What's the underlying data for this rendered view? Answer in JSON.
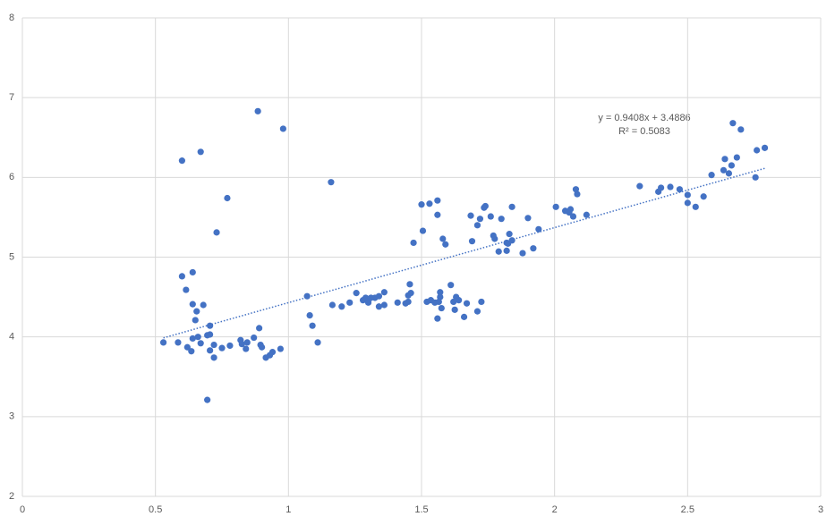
{
  "chart_data": {
    "type": "scatter",
    "color": "#4472c4",
    "grid": true,
    "xlim": [
      0,
      3
    ],
    "ylim": [
      2,
      8
    ],
    "xticks": [
      0,
      0.5,
      1,
      1.5,
      2,
      2.5,
      3
    ],
    "yticks": [
      2,
      3,
      4,
      5,
      6,
      7,
      8
    ],
    "trendline": {
      "equation": "y = 0.9408x + 3.4886",
      "r_squared": "R² = 0.5083",
      "slope": 0.9408,
      "intercept": 3.4886
    },
    "x": [
      0.53,
      0.585,
      0.6,
      0.6,
      0.615,
      0.62,
      0.635,
      0.64,
      0.64,
      0.64,
      0.65,
      0.655,
      0.66,
      0.67,
      0.67,
      0.68,
      0.695,
      0.695,
      0.705,
      0.705,
      0.705,
      0.72,
      0.72,
      0.73,
      0.75,
      0.77,
      0.78,
      0.82,
      0.825,
      0.84,
      0.845,
      0.87,
      0.885,
      0.89,
      0.895,
      0.9,
      0.915,
      0.93,
      0.94,
      0.97,
      0.98,
      1.07,
      1.08,
      1.09,
      1.11,
      1.16,
      1.165,
      1.2,
      1.23,
      1.255,
      1.28,
      1.29,
      1.3,
      1.31,
      1.325,
      1.34,
      1.34,
      1.36,
      1.36,
      1.41,
      1.44,
      1.45,
      1.45,
      1.456,
      1.46,
      1.47,
      1.5,
      1.505,
      1.52,
      1.53,
      1.535,
      1.55,
      1.56,
      1.56,
      1.56,
      1.565,
      1.57,
      1.57,
      1.575,
      1.58,
      1.59,
      1.61,
      1.62,
      1.625,
      1.63,
      1.64,
      1.66,
      1.67,
      1.685,
      1.69,
      1.71,
      1.71,
      1.72,
      1.725,
      1.735,
      1.74,
      1.76,
      1.77,
      1.775,
      1.79,
      1.8,
      1.82,
      1.82,
      1.825,
      1.83,
      1.84,
      1.84,
      1.88,
      1.9,
      1.92,
      1.94,
      2.005,
      2.04,
      2.055,
      2.06,
      2.07,
      2.08,
      2.085,
      2.12,
      2.32,
      2.39,
      2.4,
      2.435,
      2.47,
      2.5,
      2.5,
      2.53,
      2.56,
      2.59,
      2.635,
      2.64,
      2.655,
      2.665,
      2.67,
      2.685,
      2.7,
      2.755,
      2.76,
      2.79
    ],
    "values": [
      3.93,
      3.93,
      6.21,
      4.76,
      4.59,
      3.87,
      3.82,
      4.81,
      4.41,
      3.98,
      4.21,
      4.32,
      4.0,
      3.92,
      6.32,
      4.4,
      4.02,
      3.21,
      4.03,
      4.14,
      3.83,
      3.9,
      3.74,
      5.31,
      3.86,
      5.74,
      3.89,
      3.96,
      3.91,
      3.85,
      3.93,
      3.99,
      6.83,
      4.11,
      3.9,
      3.87,
      3.74,
      3.77,
      3.81,
      3.85,
      6.61,
      4.51,
      4.27,
      4.14,
      3.93,
      5.94,
      4.4,
      4.38,
      4.43,
      4.55,
      4.46,
      4.49,
      4.43,
      4.49,
      4.49,
      4.38,
      4.51,
      4.4,
      4.56,
      4.43,
      4.42,
      4.52,
      4.44,
      4.66,
      4.55,
      5.18,
      5.66,
      5.33,
      4.44,
      5.67,
      4.46,
      4.43,
      5.53,
      5.71,
      4.23,
      4.44,
      4.56,
      4.5,
      4.36,
      5.23,
      5.16,
      4.65,
      4.44,
      4.34,
      4.5,
      4.46,
      4.25,
      4.42,
      5.52,
      5.2,
      5.4,
      4.32,
      5.48,
      4.44,
      5.62,
      5.64,
      5.51,
      5.27,
      5.23,
      5.07,
      5.48,
      5.18,
      5.08,
      5.17,
      5.29,
      5.21,
      5.63,
      5.05,
      5.49,
      5.11,
      5.35,
      5.63,
      5.58,
      5.56,
      5.6,
      5.51,
      5.85,
      5.79,
      5.53,
      5.89,
      5.82,
      5.87,
      5.88,
      5.85,
      5.78,
      5.68,
      5.63,
      5.76,
      6.03,
      6.09,
      6.23,
      6.05,
      6.15,
      6.68,
      6.25,
      6.6,
      6.0,
      6.34,
      6.37
    ]
  }
}
